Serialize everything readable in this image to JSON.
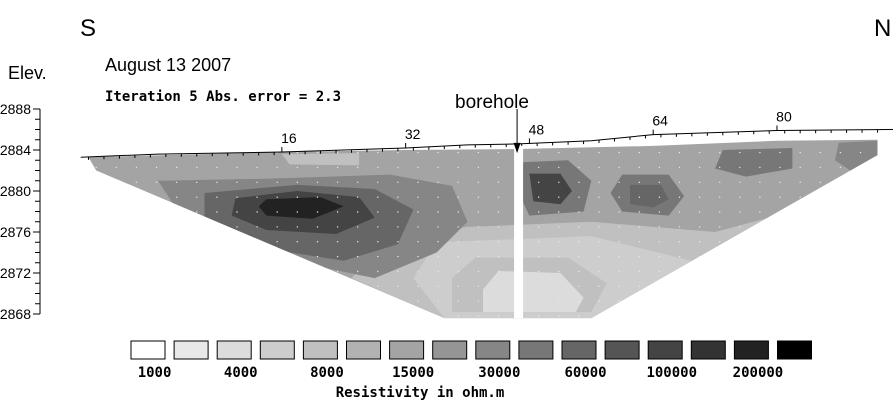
{
  "chart_data": {
    "type": "heatmap",
    "direction_left": "S",
    "direction_right": "N",
    "date": "August 13 2007",
    "iteration_text": "Iteration 5 Abs. error = 2.3",
    "borehole_label": "borehole",
    "y_axis_title": "Elev.",
    "y_ticks": [
      2888,
      2884,
      2880,
      2876,
      2872,
      2868
    ],
    "x_ticks": [
      16,
      32,
      48,
      64,
      80
    ],
    "x_range": [
      -11,
      95
    ],
    "ylim": [
      2868,
      2888
    ],
    "borehole_x": 46.6,
    "colorbar_label": "Resistivity in ohm.m",
    "colorbar_ticks": [
      "1000",
      "4000",
      "8000",
      "15000",
      "30000",
      "60000",
      "100000",
      "200000"
    ],
    "colorbar_swatch_colors": [
      "#ffffff",
      "#e8e8e8",
      "#dcdcdc",
      "#cdcdcd",
      "#c0c0c0",
      "#b2b2b2",
      "#a4a4a4",
      "#959595",
      "#868686",
      "#777777",
      "#666666",
      "#555555",
      "#444444",
      "#333333",
      "#222222",
      "#000000"
    ],
    "surface_profile": [
      {
        "x": -10,
        "elev": 2883.3
      },
      {
        "x": 0,
        "elev": 2883.6
      },
      {
        "x": 16,
        "elev": 2883.8
      },
      {
        "x": 32,
        "elev": 2884.2
      },
      {
        "x": 40,
        "elev": 2884.5
      },
      {
        "x": 46.6,
        "elev": 2884.6
      },
      {
        "x": 56,
        "elev": 2884.9
      },
      {
        "x": 64,
        "elev": 2885.5
      },
      {
        "x": 80,
        "elev": 2885.9
      },
      {
        "x": 95,
        "elev": 2886.0
      }
    ],
    "section_outline": [
      {
        "x": -9,
        "elev": 2883.3
      },
      {
        "x": 16,
        "elev": 2883.8
      },
      {
        "x": 32,
        "elev": 2884.0
      },
      {
        "x": 46.6,
        "elev": 2884.1
      },
      {
        "x": 64,
        "elev": 2884.4
      },
      {
        "x": 80,
        "elev": 2884.9
      },
      {
        "x": 93,
        "elev": 2885.0
      },
      {
        "x": 93,
        "elev": 2883.5
      },
      {
        "x": 56,
        "elev": 2867.6
      },
      {
        "x": 37,
        "elev": 2867.6
      },
      {
        "x": -8,
        "elev": 2882.0
      }
    ],
    "resistivity_zones": [
      {
        "class": 8,
        "points": [
          {
            "x": 0,
            "elev": 2881.0
          },
          {
            "x": 14,
            "elev": 2881.2
          },
          {
            "x": 30,
            "elev": 2881.6
          },
          {
            "x": 38,
            "elev": 2880.5
          },
          {
            "x": 40,
            "elev": 2877.0
          },
          {
            "x": 36,
            "elev": 2874.0
          },
          {
            "x": 28,
            "elev": 2871.5
          },
          {
            "x": 15,
            "elev": 2873.5
          },
          {
            "x": 3,
            "elev": 2877.5
          }
        ]
      },
      {
        "class": 10,
        "points": [
          {
            "x": 6,
            "elev": 2879.8
          },
          {
            "x": 18,
            "elev": 2880.6
          },
          {
            "x": 28,
            "elev": 2880.2
          },
          {
            "x": 33,
            "elev": 2878.2
          },
          {
            "x": 31,
            "elev": 2874.8
          },
          {
            "x": 24,
            "elev": 2873.2
          },
          {
            "x": 12,
            "elev": 2874.6
          },
          {
            "x": 6,
            "elev": 2877.2
          }
        ]
      },
      {
        "class": 12,
        "points": [
          {
            "x": 10,
            "elev": 2879.3
          },
          {
            "x": 18,
            "elev": 2880.0
          },
          {
            "x": 26,
            "elev": 2879.4
          },
          {
            "x": 28,
            "elev": 2877.4
          },
          {
            "x": 23,
            "elev": 2875.8
          },
          {
            "x": 14,
            "elev": 2876.2
          },
          {
            "x": 9.5,
            "elev": 2877.6
          }
        ]
      },
      {
        "class": 14,
        "points": [
          {
            "x": 14,
            "elev": 2879.2
          },
          {
            "x": 21,
            "elev": 2879.4
          },
          {
            "x": 24,
            "elev": 2878.5
          },
          {
            "x": 20,
            "elev": 2877.3
          },
          {
            "x": 14,
            "elev": 2877.6
          },
          {
            "x": 13,
            "elev": 2878.5
          }
        ]
      },
      {
        "class": 4,
        "points": [
          {
            "x": 41,
            "elev": 2873.5
          },
          {
            "x": 53,
            "elev": 2873.5
          },
          {
            "x": 58,
            "elev": 2871.0
          },
          {
            "x": 56,
            "elev": 2868.2
          },
          {
            "x": 38,
            "elev": 2868.2
          },
          {
            "x": 38,
            "elev": 2871.5
          }
        ]
      },
      {
        "class": 2,
        "points": [
          {
            "x": 44,
            "elev": 2872.2
          },
          {
            "x": 52,
            "elev": 2872.0
          },
          {
            "x": 55,
            "elev": 2869.6
          },
          {
            "x": 54,
            "elev": 2868.2
          },
          {
            "x": 42,
            "elev": 2868.2
          },
          {
            "x": 42,
            "elev": 2870.4
          }
        ]
      },
      {
        "class": 9,
        "points": [
          {
            "x": 47,
            "elev": 2882.8
          },
          {
            "x": 53,
            "elev": 2883.0
          },
          {
            "x": 56,
            "elev": 2881.0
          },
          {
            "x": 55,
            "elev": 2878.0
          },
          {
            "x": 48,
            "elev": 2877.6
          },
          {
            "x": 46.8,
            "elev": 2879.5
          }
        ]
      },
      {
        "class": 12,
        "points": [
          {
            "x": 48,
            "elev": 2881.7
          },
          {
            "x": 52,
            "elev": 2881.7
          },
          {
            "x": 53.5,
            "elev": 2880.0
          },
          {
            "x": 52,
            "elev": 2878.7
          },
          {
            "x": 48.5,
            "elev": 2879.0
          }
        ]
      },
      {
        "class": 9,
        "points": [
          {
            "x": 60,
            "elev": 2881.6
          },
          {
            "x": 66,
            "elev": 2881.6
          },
          {
            "x": 68,
            "elev": 2879.5
          },
          {
            "x": 66,
            "elev": 2877.6
          },
          {
            "x": 60,
            "elev": 2878.0
          },
          {
            "x": 58.5,
            "elev": 2879.8
          }
        ]
      },
      {
        "class": 10,
        "points": [
          {
            "x": 61,
            "elev": 2880.6
          },
          {
            "x": 65,
            "elev": 2880.6
          },
          {
            "x": 66,
            "elev": 2879.2
          },
          {
            "x": 64,
            "elev": 2878.4
          },
          {
            "x": 61,
            "elev": 2878.7
          }
        ]
      },
      {
        "class": 9,
        "points": [
          {
            "x": 73,
            "elev": 2884.0
          },
          {
            "x": 82,
            "elev": 2884.2
          },
          {
            "x": 82,
            "elev": 2882.2
          },
          {
            "x": 76,
            "elev": 2881.4
          },
          {
            "x": 72,
            "elev": 2882.2
          }
        ]
      },
      {
        "class": 8,
        "points": [
          {
            "x": 88,
            "elev": 2884.7
          },
          {
            "x": 93,
            "elev": 2884.9
          },
          {
            "x": 93,
            "elev": 2883.5
          },
          {
            "x": 89.5,
            "elev": 2882.0
          },
          {
            "x": 87.5,
            "elev": 2883.0
          }
        ]
      },
      {
        "class": 4,
        "points": [
          {
            "x": 16,
            "elev": 2883.6
          },
          {
            "x": 26,
            "elev": 2883.7
          },
          {
            "x": 26,
            "elev": 2882.5
          },
          {
            "x": 17,
            "elev": 2882.6
          }
        ]
      }
    ]
  }
}
